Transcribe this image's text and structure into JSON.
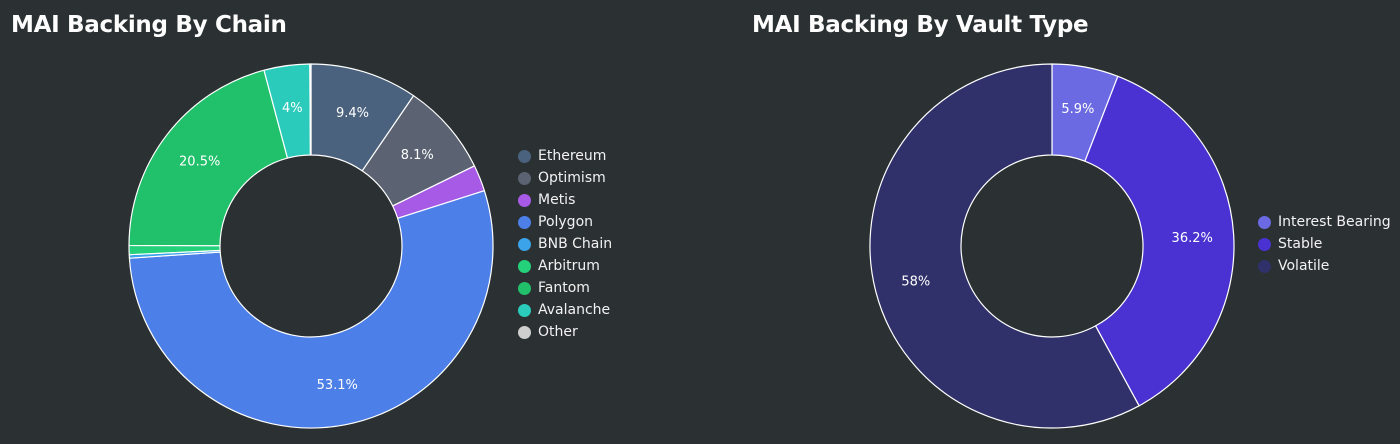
{
  "chart_data": [
    {
      "type": "pie",
      "title": "MAI Backing By Chain",
      "categories": [
        "Ethereum",
        "Optimism",
        "Metis",
        "Polygon",
        "BNB Chain",
        "Arbitrum",
        "Fantom",
        "Avalanche",
        "Other"
      ],
      "values": [
        9.4,
        8.1,
        2.3,
        53.1,
        0.3,
        0.8,
        20.5,
        4.0,
        0.1
      ],
      "data_labels": [
        "9.4%",
        "8.1%",
        "",
        "53.1%",
        "",
        "",
        "20.5%",
        "4%",
        ""
      ],
      "colors": [
        "#4b627e",
        "#5b6271",
        "#a65ae6",
        "#4c7fe8",
        "#3aa3ea",
        "#25d07a",
        "#21c06a",
        "#2bcbbb",
        "#cfcfcf"
      ],
      "donut": true,
      "legend_position": "right"
    },
    {
      "type": "pie",
      "title": "MAI Backing By Vault Type",
      "categories": [
        "Interest Bearing",
        "Stable",
        "Volatile"
      ],
      "values": [
        5.9,
        36.2,
        58
      ],
      "data_labels": [
        "5.9%",
        "36.2%",
        "58%"
      ],
      "colors": [
        "#6b6ae2",
        "#4a32d2",
        "#30306a"
      ],
      "donut": true,
      "legend_position": "right"
    }
  ]
}
